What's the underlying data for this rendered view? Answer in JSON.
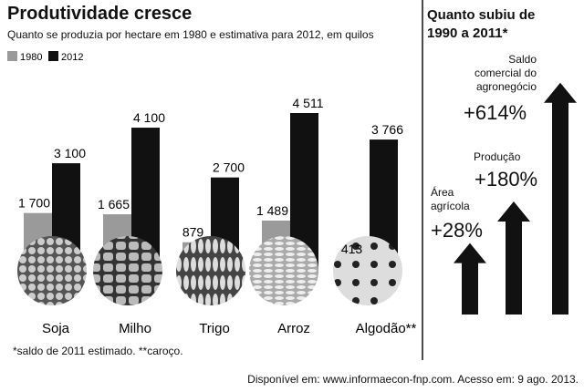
{
  "chart_data": [
    {
      "type": "bar",
      "title": "Produtividade cresce",
      "subtitle": "Quanto se produzia por hectare em 1980 e estimativa para 2012, em quilos",
      "categories": [
        "Soja",
        "Milho",
        "Trigo",
        "Arroz",
        "Algodão**"
      ],
      "series": [
        {
          "name": "1980",
          "color": "#9a9a9a",
          "values": [
            1700,
            1665,
            879,
            1489,
            413
          ],
          "value_labels": [
            "1 700",
            "1 665",
            "879",
            "1 489",
            "413"
          ]
        },
        {
          "name": "2012",
          "color": "#111111",
          "values": [
            3100,
            4100,
            2700,
            4511,
            3766
          ],
          "value_labels": [
            "3 100",
            "4 100",
            "2 700",
            "4 511",
            "3 766"
          ]
        }
      ],
      "footnote": "*saldo de 2011 estimado. **caroço."
    },
    {
      "type": "arrow",
      "title": "Quanto subiu de 1990 a 2011*",
      "categories": [
        "Área agrícola",
        "Produção",
        "Saldo comercial do agronegócio"
      ],
      "values": [
        28,
        180,
        614
      ],
      "value_labels": [
        "+28%",
        "+180%",
        "+614%"
      ],
      "color": "#111111"
    }
  ],
  "source": "Disponível em: www.informaecon-fnp.com. Acesso em: 9 ago. 2013."
}
